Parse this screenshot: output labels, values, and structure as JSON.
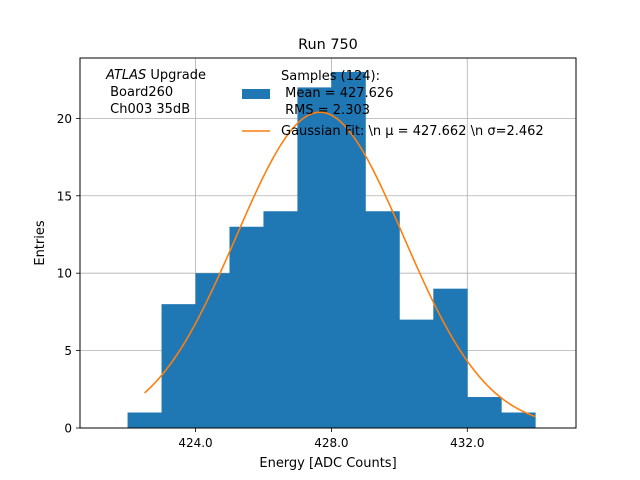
{
  "chart_data": {
    "type": "bar",
    "title": "Run 750",
    "xlabel": "Energy [ADC Counts]",
    "ylabel": "Entries",
    "xlim": [
      420.6,
      435.2
    ],
    "ylim": [
      0,
      23.9
    ],
    "grid": true,
    "xticks": [
      424.0,
      428.0,
      432.0
    ],
    "xtick_labels": [
      "424.0",
      "428.0",
      "432.0"
    ],
    "yticks": [
      0,
      5,
      10,
      15,
      20
    ],
    "ytick_labels": [
      "0",
      "5",
      "10",
      "15",
      "20"
    ],
    "bin_edges": [
      422,
      423,
      424,
      425,
      426,
      427,
      428,
      429,
      430,
      431,
      432,
      433,
      434
    ],
    "values": [
      1,
      8,
      10,
      13,
      14,
      22,
      23,
      14,
      7,
      9,
      2,
      1
    ],
    "bar_color": "#1f77b4",
    "fit": {
      "name": "Gaussian Fit",
      "mean": 427.662,
      "sigma": 2.462,
      "amplitude": 20.4,
      "x_range": [
        422.5,
        434.0
      ],
      "color": "#ff7f0e"
    },
    "annotation": {
      "italic": "ATLAS",
      "rest": " Upgrade",
      "lines": [
        " Board260",
        " Ch003 35dB"
      ]
    },
    "legend": {
      "position": "top-center",
      "hist_lines": [
        "Samples (124):",
        " Mean = 427.626",
        " RMS = 2.303"
      ],
      "fit_label": "Gaussian Fit: \\n μ = 427.662 \\n σ=2.462"
    }
  }
}
